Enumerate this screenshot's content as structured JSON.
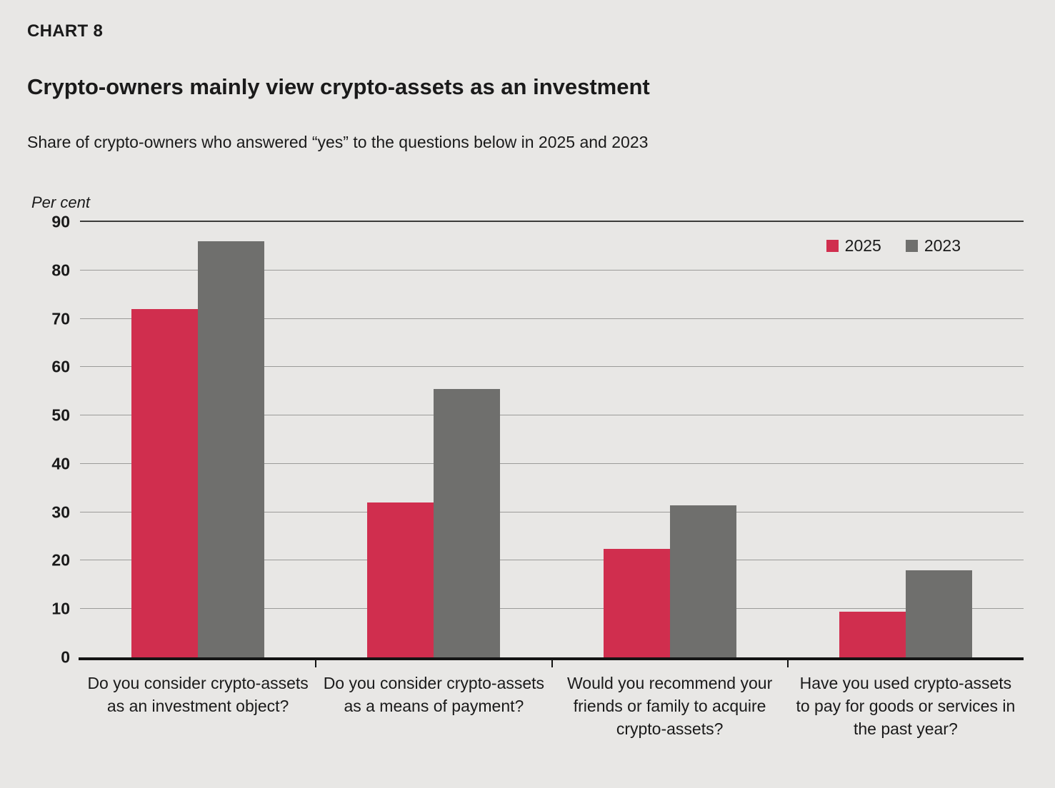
{
  "page": {
    "background": "#e8e7e5"
  },
  "header": {
    "kicker": "CHART 8",
    "title": "Crypto-owners mainly view crypto-assets as an investment",
    "subtitle": "Share of crypto-owners who answered “yes” to the questions below in 2025 and 2023"
  },
  "chart_data": {
    "type": "bar",
    "title": "Crypto-owners mainly view crypto-assets as an investment",
    "unit_label": "Per cent",
    "categories": [
      "Do you consider crypto-assets as an investment object?",
      "Do you consider crypto-assets as a means of payment?",
      "Would you recommend your friends or family to acquire crypto-assets?",
      "Have you used crypto-assets to pay for goods or services in the past year?"
    ],
    "series": [
      {
        "name": "2025",
        "color": "#d02e4e",
        "values": [
          72,
          32,
          22.5,
          9.5
        ]
      },
      {
        "name": "2023",
        "color": "#6f6f6d",
        "values": [
          86,
          55.5,
          31.5,
          18
        ]
      }
    ],
    "ylim": [
      0,
      90
    ],
    "yticks": [
      0,
      10,
      20,
      30,
      40,
      50,
      60,
      70,
      80,
      90
    ],
    "grid": true,
    "legend_position": "top-right",
    "axis_colors": {
      "gridline": "#9b9b99",
      "top_gridline": "#3c3c3a",
      "baseline": "#141414"
    }
  }
}
